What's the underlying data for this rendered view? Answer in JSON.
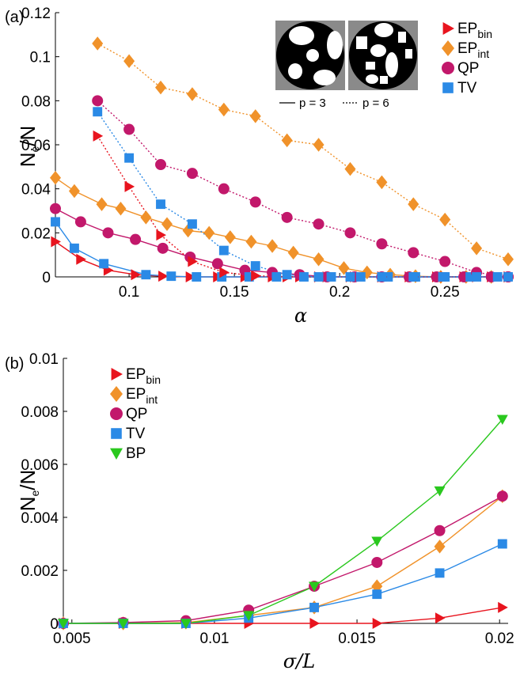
{
  "colors": {
    "EP_bin": "#e8141e",
    "EP_int": "#f0922a",
    "QP": "#c2186b",
    "TV": "#2b8ae6",
    "BP": "#2ac81e"
  },
  "chart_data": [
    {
      "type": "line",
      "panel_label": "(a)",
      "xlabel": "α",
      "ylabel": "N_e/N",
      "xlim": [
        0.065,
        0.28
      ],
      "ylim": [
        0,
        0.12
      ],
      "xticks": [
        "0.1",
        "0.15",
        "0.2",
        "0.25"
      ],
      "xtick_values": [
        0.1,
        0.15,
        0.2,
        0.25
      ],
      "yticks": [
        "0",
        "0.02",
        "0.04",
        "0.06",
        "0.08",
        "0.1",
        "0.12"
      ],
      "ytick_values": [
        0,
        0.02,
        0.04,
        0.06,
        0.08,
        0.1,
        0.12
      ],
      "legend_position": "top-right",
      "legend": [
        {
          "name": "EP",
          "sub": "bin",
          "key": "EP_bin",
          "marker": "triangle-right"
        },
        {
          "name": "EP",
          "sub": "int",
          "key": "EP_int",
          "marker": "diamond"
        },
        {
          "name": "QP",
          "sub": "",
          "key": "QP",
          "marker": "circle"
        },
        {
          "name": "TV",
          "sub": "",
          "key": "TV",
          "marker": "square"
        }
      ],
      "inset_captions": {
        "solid": "p = 3",
        "dotted": "p = 6"
      },
      "series": [
        {
          "key": "EP_bin",
          "dash": "solid",
          "marker": "triangle-right",
          "x": [
            0.065,
            0.077,
            0.09,
            0.103,
            0.116,
            0.129,
            0.142,
            0.155,
            0.168,
            0.181,
            0.194,
            0.207,
            0.22,
            0.233,
            0.246,
            0.259,
            0.272,
            0.28
          ],
          "y": [
            0.016,
            0.008,
            0.003,
            0.001,
            0.0003,
            0,
            0,
            0,
            0,
            0,
            0,
            0,
            0,
            0,
            0,
            0,
            0,
            0
          ]
        },
        {
          "key": "EP_int",
          "dash": "solid",
          "marker": "diamond",
          "x": [
            0.065,
            0.074,
            0.087,
            0.096,
            0.108,
            0.118,
            0.128,
            0.138,
            0.148,
            0.158,
            0.168,
            0.178,
            0.19,
            0.202,
            0.213,
            0.224,
            0.236,
            0.248,
            0.26,
            0.272
          ],
          "y": [
            0.045,
            0.039,
            0.033,
            0.031,
            0.027,
            0.024,
            0.021,
            0.02,
            0.018,
            0.016,
            0.014,
            0.011,
            0.008,
            0.004,
            0.002,
            0.001,
            0.0003,
            0,
            0,
            0
          ]
        },
        {
          "key": "QP",
          "dash": "solid",
          "marker": "circle",
          "x": [
            0.065,
            0.077,
            0.09,
            0.103,
            0.116,
            0.129,
            0.142,
            0.155,
            0.168,
            0.181,
            0.194,
            0.207,
            0.22,
            0.233,
            0.246,
            0.259,
            0.272,
            0.28
          ],
          "y": [
            0.031,
            0.025,
            0.02,
            0.017,
            0.013,
            0.009,
            0.006,
            0.003,
            0.002,
            0.001,
            0,
            0,
            0,
            0,
            0,
            0,
            0,
            0
          ]
        },
        {
          "key": "TV",
          "dash": "solid",
          "marker": "square",
          "x": [
            0.065,
            0.074,
            0.088,
            0.108,
            0.12,
            0.132,
            0.144,
            0.157,
            0.17,
            0.183,
            0.196,
            0.21,
            0.223,
            0.236,
            0.249,
            0.262,
            0.275
          ],
          "y": [
            0.025,
            0.013,
            0.006,
            0.001,
            0.0003,
            0,
            0,
            0,
            0,
            0,
            0,
            0,
            0,
            0,
            0,
            0,
            0
          ]
        },
        {
          "key": "EP_bin",
          "dash": "dotted",
          "marker": "triangle-right",
          "x": [
            0.085,
            0.1,
            0.115,
            0.13,
            0.145,
            0.16,
            0.175,
            0.19,
            0.205,
            0.22,
            0.235,
            0.25,
            0.265,
            0.28
          ],
          "y": [
            0.064,
            0.041,
            0.019,
            0.007,
            0.002,
            0.0005,
            0,
            0,
            0,
            0,
            0,
            0,
            0,
            0
          ]
        },
        {
          "key": "EP_int",
          "dash": "dotted",
          "marker": "diamond",
          "x": [
            0.085,
            0.1,
            0.115,
            0.13,
            0.145,
            0.16,
            0.175,
            0.19,
            0.205,
            0.22,
            0.235,
            0.25,
            0.265,
            0.28
          ],
          "y": [
            0.106,
            0.098,
            0.086,
            0.083,
            0.076,
            0.073,
            0.062,
            0.06,
            0.049,
            0.043,
            0.033,
            0.026,
            0.013,
            0.008
          ]
        },
        {
          "key": "QP",
          "dash": "dotted",
          "marker": "circle",
          "x": [
            0.085,
            0.1,
            0.115,
            0.13,
            0.145,
            0.16,
            0.175,
            0.19,
            0.205,
            0.22,
            0.235,
            0.25,
            0.265,
            0.28
          ],
          "y": [
            0.08,
            0.067,
            0.051,
            0.047,
            0.04,
            0.034,
            0.027,
            0.024,
            0.02,
            0.015,
            0.011,
            0.007,
            0.002,
            0
          ]
        },
        {
          "key": "TV",
          "dash": "dotted",
          "marker": "square",
          "x": [
            0.085,
            0.1,
            0.115,
            0.13,
            0.145,
            0.16,
            0.175,
            0.19,
            0.205,
            0.22,
            0.235,
            0.25,
            0.265,
            0.28
          ],
          "y": [
            0.075,
            0.054,
            0.033,
            0.024,
            0.012,
            0.005,
            0.001,
            0,
            0,
            0,
            0,
            0,
            0,
            0
          ]
        }
      ]
    },
    {
      "type": "line",
      "panel_label": "(b)",
      "xlabel": "σ/L",
      "ylabel": "N_e/N",
      "xlim": [
        0.0047,
        0.0203
      ],
      "ylim": [
        0,
        0.01
      ],
      "xticks": [
        "0.005",
        "0.01",
        "0.015",
        "0.02"
      ],
      "xtick_values": [
        0.005,
        0.01,
        0.015,
        0.02
      ],
      "yticks": [
        "0",
        "0.002",
        "0.004",
        "0.006",
        "0.008",
        "0.01"
      ],
      "ytick_values": [
        0,
        0.002,
        0.004,
        0.006,
        0.008,
        0.01
      ],
      "legend_position": "top-left",
      "legend": [
        {
          "name": "EP",
          "sub": "bin",
          "key": "EP_bin",
          "marker": "triangle-right"
        },
        {
          "name": "EP",
          "sub": "int",
          "key": "EP_int",
          "marker": "diamond"
        },
        {
          "name": "QP",
          "sub": "",
          "key": "QP",
          "marker": "circle"
        },
        {
          "name": "TV",
          "sub": "",
          "key": "TV",
          "marker": "square"
        },
        {
          "name": "BP",
          "sub": "",
          "key": "BP",
          "marker": "triangle-down"
        }
      ],
      "series": [
        {
          "key": "EP_bin",
          "dash": "solid",
          "marker": "triangle-right",
          "x": [
            0.0047,
            0.0068,
            0.009,
            0.0112,
            0.0135,
            0.0157,
            0.0179,
            0.0201
          ],
          "y": [
            0,
            0,
            0,
            0,
            0,
            0,
            0.0002,
            0.0006
          ]
        },
        {
          "key": "EP_int",
          "dash": "solid",
          "marker": "diamond",
          "x": [
            0.0047,
            0.0068,
            0.009,
            0.0112,
            0.0135,
            0.0157,
            0.0179,
            0.0201
          ],
          "y": [
            0,
            0,
            3e-05,
            0.0003,
            0.0006,
            0.0014,
            0.0029,
            0.0048
          ]
        },
        {
          "key": "QP",
          "dash": "solid",
          "marker": "circle",
          "x": [
            0.0047,
            0.0068,
            0.009,
            0.0112,
            0.0135,
            0.0157,
            0.0179,
            0.0201
          ],
          "y": [
            0,
            3e-05,
            0.0001,
            0.0005,
            0.0014,
            0.0023,
            0.0035,
            0.0048
          ]
        },
        {
          "key": "TV",
          "dash": "solid",
          "marker": "square",
          "x": [
            0.0047,
            0.0068,
            0.009,
            0.0112,
            0.0135,
            0.0157,
            0.0179,
            0.0201
          ],
          "y": [
            0,
            0,
            0,
            0.0002,
            0.0006,
            0.0011,
            0.0019,
            0.003
          ]
        },
        {
          "key": "BP",
          "dash": "solid",
          "marker": "triangle-down",
          "x": [
            0.0047,
            0.0068,
            0.009,
            0.0112,
            0.0135,
            0.0157,
            0.0179,
            0.0201
          ],
          "y": [
            0,
            0,
            0,
            0.0003,
            0.0014,
            0.0031,
            0.005,
            0.0077
          ]
        }
      ]
    }
  ]
}
